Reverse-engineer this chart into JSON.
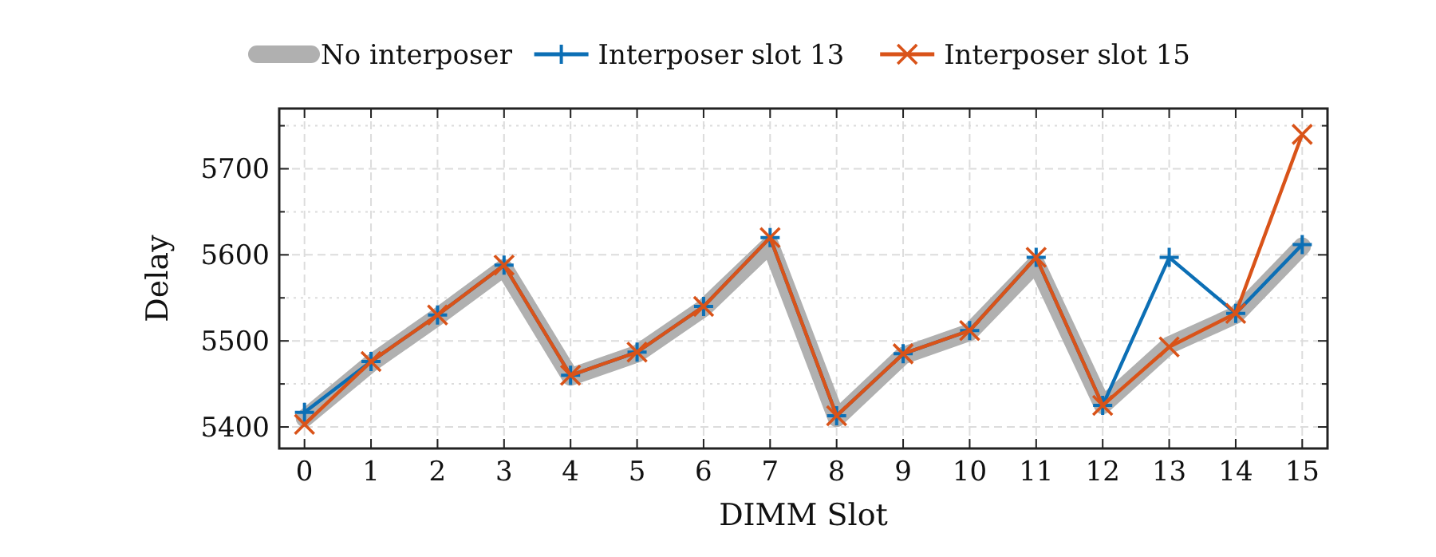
{
  "chart_data": {
    "type": "line",
    "xlabel": "DIMM Slot",
    "ylabel": "Delay",
    "x": [
      0,
      1,
      2,
      3,
      4,
      5,
      6,
      7,
      8,
      9,
      10,
      11,
      12,
      13,
      14,
      15
    ],
    "xlim": [
      -0.38,
      15.38
    ],
    "xticks": [
      0,
      1,
      2,
      3,
      4,
      5,
      6,
      7,
      8,
      9,
      10,
      11,
      12,
      13,
      14,
      15
    ],
    "ylim": [
      5375,
      5770
    ],
    "yticks": [
      5400,
      {
        "value": 5450,
        "label": null
      },
      5500,
      {
        "value": 5550,
        "label": null
      },
      5600,
      {
        "value": 5650,
        "label": null
      },
      5700,
      {
        "value": 5750,
        "label": null
      }
    ],
    "grid": true,
    "legend": "top",
    "series": [
      {
        "name": "No interposer",
        "color": "#b0b0b0",
        "marker": "none",
        "values": [
          5410,
          5474,
          5528,
          5585,
          5458,
          5485,
          5538,
          5612,
          5410,
          5483,
          5510,
          5590,
          5425,
          5495,
          5530,
          5610
        ]
      },
      {
        "name": "Interposer slot 13",
        "color": "#0c6fb5",
        "marker": "plus",
        "values": [
          5417,
          5476,
          5530,
          5588,
          5460,
          5487,
          5540,
          5620,
          5413,
          5485,
          5512,
          5597,
          5425,
          5597,
          5532,
          5612
        ]
      },
      {
        "name": "Interposer slot 15",
        "color": "#d95319",
        "marker": "cross",
        "values": [
          5403,
          5476,
          5530,
          5588,
          5460,
          5487,
          5540,
          5620,
          5413,
          5485,
          5512,
          5597,
          5425,
          5493,
          5532,
          5740
        ]
      }
    ]
  }
}
